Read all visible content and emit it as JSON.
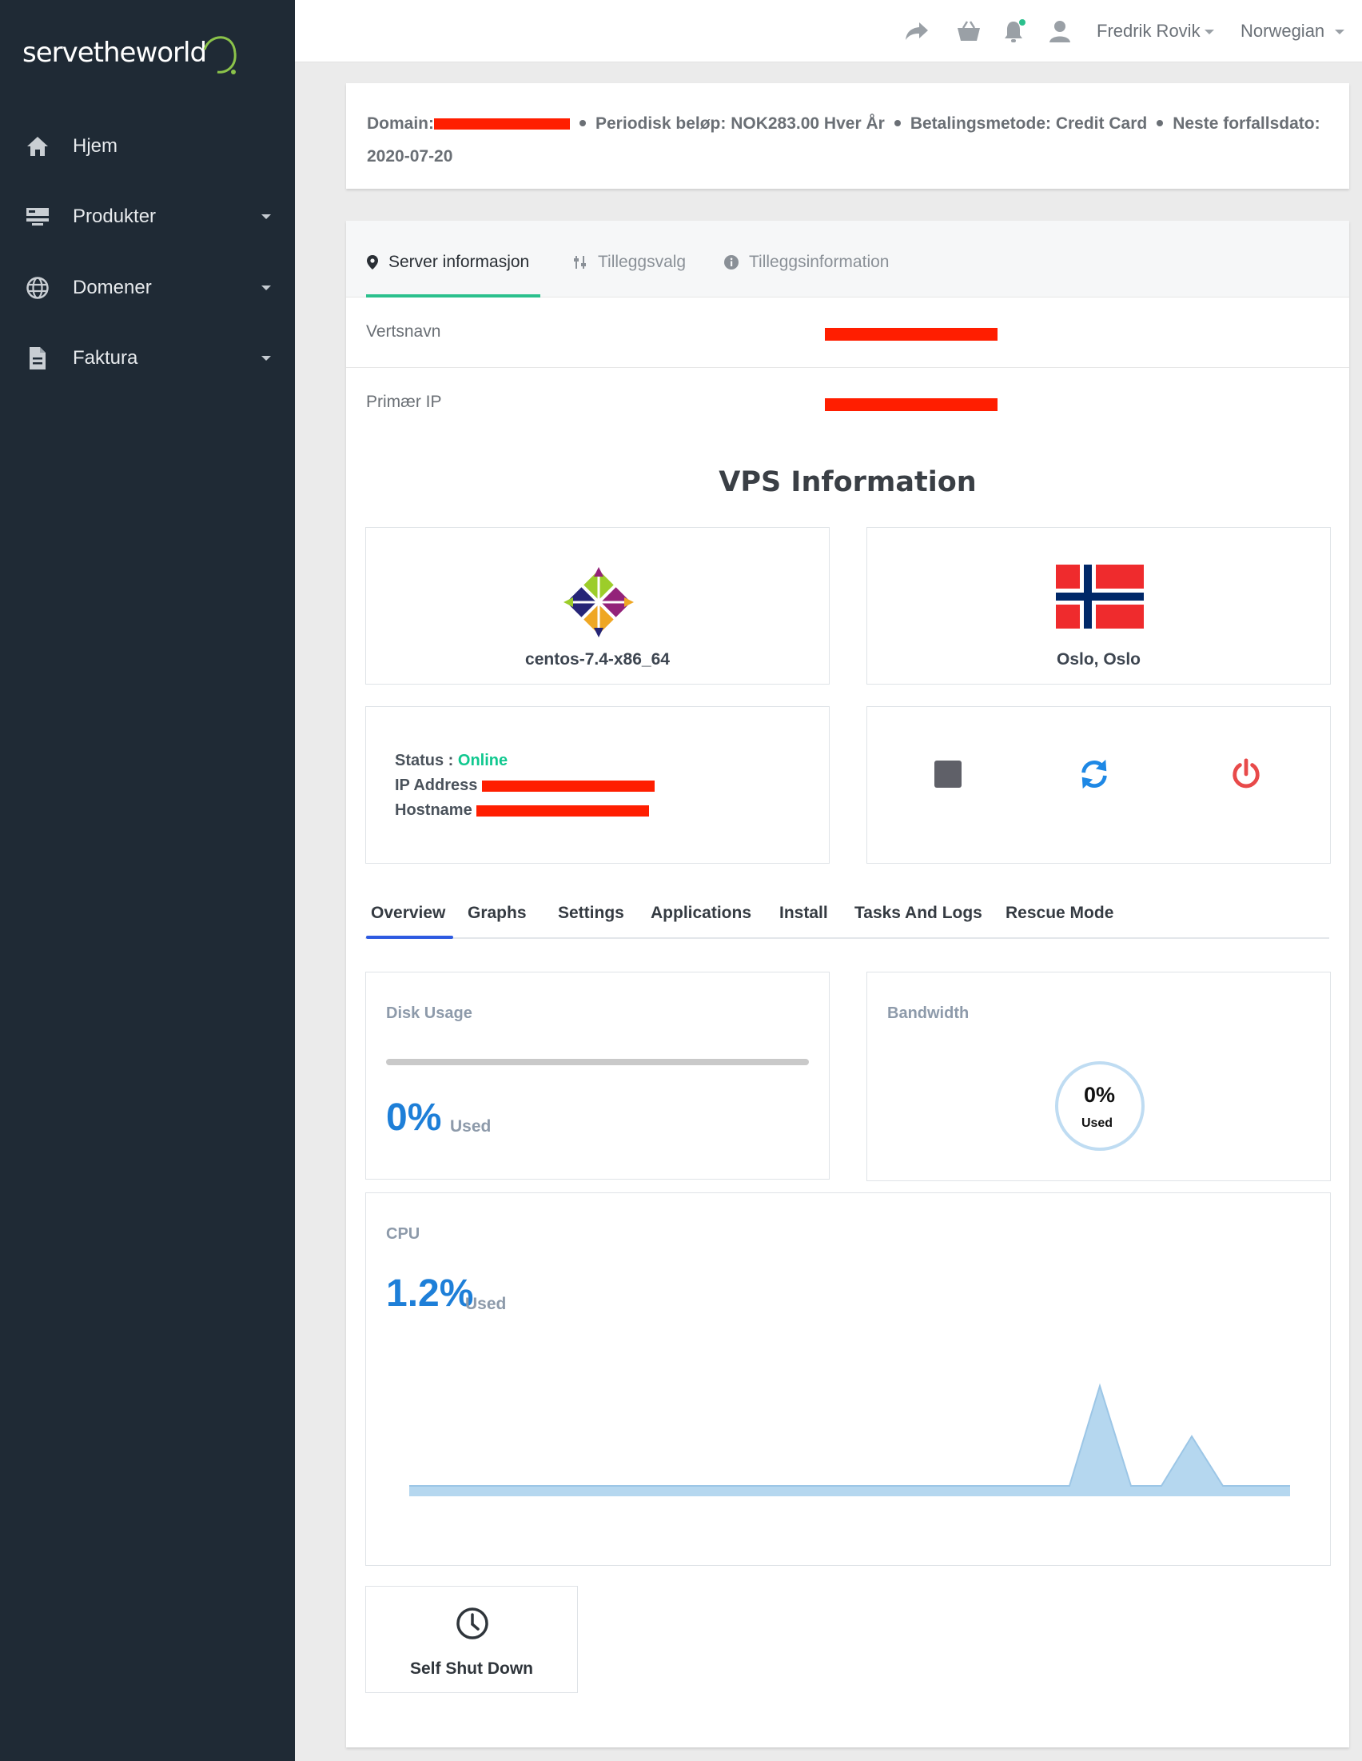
{
  "brand": {
    "logo_text": "servetheworld"
  },
  "sidebar": {
    "items": [
      {
        "label": "Hjem",
        "icon": "home-icon",
        "has_submenu": false
      },
      {
        "label": "Produkter",
        "icon": "server-icon",
        "has_submenu": true
      },
      {
        "label": "Domener",
        "icon": "globe-icon",
        "has_submenu": true
      },
      {
        "label": "Faktura",
        "icon": "document-icon",
        "has_submenu": true
      }
    ]
  },
  "topbar": {
    "icons": [
      "share-icon",
      "basket-icon",
      "bell-icon",
      "user-icon"
    ],
    "user_name": "Fredrik Rovik",
    "language": "Norwegian"
  },
  "summary": {
    "domain_label": "Domain:",
    "recurring": "Periodisk beløp: NOK283.00 Hver År",
    "payment_method": "Betalingsmetode: Credit Card",
    "next_due_label": "Neste forfallsdato:",
    "next_due_date": "2020-07-20"
  },
  "service_tabs": [
    {
      "label": "Server informasjon",
      "icon": "map-pin-icon",
      "active": true
    },
    {
      "label": "Tilleggsvalg",
      "icon": "sliders-icon",
      "active": false
    },
    {
      "label": "Tilleggsinformation",
      "icon": "info-icon",
      "active": false
    }
  ],
  "server_info": {
    "hostname_label": "Vertsnavn",
    "primary_ip_label": "Primær IP"
  },
  "vps": {
    "title": "VPS Information",
    "os": "centos-7.4-x86_64",
    "location": "Oslo, Oslo",
    "status_label": "Status :",
    "status_value": "Online",
    "ip_label": "IP Address",
    "hostname_label": "Hostname",
    "controls": [
      "stop-icon",
      "restart-icon",
      "power-icon"
    ]
  },
  "vps_tabs": [
    "Overview",
    "Graphs",
    "Settings",
    "Applications",
    "Install",
    "Tasks And Logs",
    "Rescue Mode"
  ],
  "disk": {
    "label": "Disk Usage",
    "percent": "0%",
    "used_label": "Used",
    "fraction": 0
  },
  "bandwidth": {
    "label": "Bandwidth",
    "percent": "0%",
    "used_label": "Used",
    "fraction": 0
  },
  "cpu": {
    "label": "CPU",
    "percent": "1.2%",
    "used_label": "Used"
  },
  "self_shutdown": {
    "label": "Self Shut Down",
    "icon": "clock-icon"
  },
  "colors": {
    "sidebar_bg": "#1f2a35",
    "accent_green": "#2bc08d",
    "status_online": "#10c88f",
    "tab_active": "#2d5ae1",
    "stat_blue": "#1e7fd8",
    "chart_fill": "#b5d7ef",
    "redaction": "#ff1e00",
    "power_red": "#e84a4a",
    "restart_blue": "#1e88e5"
  }
}
